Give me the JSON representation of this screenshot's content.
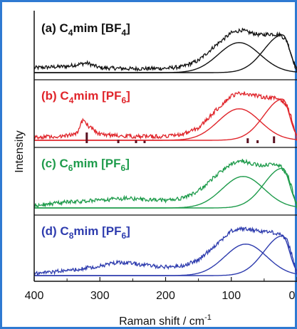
{
  "chart_data": {
    "type": "line",
    "xlabel": "Raman shift / cm",
    "xlabel_sup": "-1",
    "ylabel": "Intensity",
    "xlim": [
      400,
      0
    ],
    "x_ticks": [
      "400",
      "300",
      "200",
      "100",
      "0"
    ],
    "x_tick_values": [
      400,
      300,
      200,
      100,
      0
    ],
    "grid": false,
    "panels": [
      {
        "label_prefix": "(a) C",
        "label_sub1": "4",
        "label_mid": "mim [BF",
        "label_sub2": "4",
        "label_suffix": "]",
        "color": "#111111",
        "series": [
          {
            "kind": "spectrum",
            "x": [
              400,
              350,
              320,
              300,
              250,
              200,
              175,
              150,
              125,
              100,
              85,
              70,
              55,
              40,
              25,
              15,
              8
            ],
            "y": [
              0.1,
              0.13,
              0.2,
              0.1,
              0.08,
              0.09,
              0.12,
              0.25,
              0.55,
              0.82,
              0.88,
              0.82,
              0.78,
              0.8,
              0.78,
              0.65,
              0.35
            ]
          },
          {
            "kind": "band",
            "center": 88,
            "width": 45,
            "height": 0.62
          },
          {
            "kind": "band_asym",
            "center": 22,
            "width_left": 40,
            "width_right": 15,
            "height": 0.78
          }
        ]
      },
      {
        "label_prefix": "(b) C",
        "label_sub1": "4",
        "label_mid": "mim [PF",
        "label_sub2": "6",
        "label_suffix": "]",
        "color": "#e0252b",
        "series": [
          {
            "kind": "spectrum",
            "x": [
              400,
              350,
              335,
              325,
              318,
              300,
              250,
              200,
              175,
              150,
              125,
              100,
              85,
              70,
              55,
              40,
              25,
              15,
              8
            ],
            "y": [
              0.05,
              0.1,
              0.15,
              0.45,
              0.3,
              0.12,
              0.08,
              0.08,
              0.12,
              0.25,
              0.6,
              0.92,
              0.98,
              0.95,
              0.9,
              0.88,
              0.85,
              0.7,
              0.45
            ]
          },
          {
            "kind": "band",
            "center": 88,
            "width": 45,
            "height": 0.65
          },
          {
            "kind": "band_asym",
            "center": 22,
            "width_left": 40,
            "width_right": 15,
            "height": 0.85
          }
        ],
        "sticks": [
          {
            "x": 320,
            "h": 0.22
          },
          {
            "x": 272,
            "h": 0.07
          },
          {
            "x": 245,
            "h": 0.06
          },
          {
            "x": 232,
            "h": 0.05
          },
          {
            "x": 75,
            "h": 0.1
          },
          {
            "x": 60,
            "h": 0.06
          },
          {
            "x": 35,
            "h": 0.14
          }
        ]
      },
      {
        "label_prefix": "(c) C",
        "label_sub1": "6",
        "label_mid": "mim [PF",
        "label_sub2": "6",
        "label_suffix": "]",
        "color": "#1e9b4b",
        "series": [
          {
            "kind": "spectrum",
            "x": [
              400,
              350,
              300,
              260,
              240,
              200,
              175,
              150,
              125,
              100,
              85,
              70,
              55,
              40,
              25,
              15,
              8
            ],
            "y": [
              0.05,
              0.12,
              0.16,
              0.2,
              0.18,
              0.16,
              0.2,
              0.35,
              0.65,
              0.92,
              0.98,
              0.92,
              0.88,
              0.9,
              0.86,
              0.7,
              0.42
            ]
          },
          {
            "kind": "band",
            "center": 82,
            "width": 45,
            "height": 0.65
          },
          {
            "kind": "band_asym",
            "center": 22,
            "width_left": 40,
            "width_right": 15,
            "height": 0.82
          }
        ]
      },
      {
        "label_prefix": "(d) C",
        "label_sub1": "8",
        "label_mid": "mim [PF",
        "label_sub2": "6",
        "label_suffix": "]",
        "color": "#2e3cae",
        "series": [
          {
            "kind": "spectrum",
            "x": [
              400,
              350,
              300,
              270,
              250,
              220,
              200,
              175,
              150,
              125,
              100,
              85,
              70,
              55,
              40,
              25,
              15,
              8
            ],
            "y": [
              0.05,
              0.1,
              0.2,
              0.28,
              0.25,
              0.2,
              0.18,
              0.2,
              0.32,
              0.62,
              0.92,
              0.97,
              0.95,
              0.92,
              0.9,
              0.86,
              0.72,
              0.45
            ]
          },
          {
            "kind": "band",
            "center": 78,
            "width": 45,
            "height": 0.65
          },
          {
            "kind": "band_asym",
            "center": 22,
            "width_left": 40,
            "width_right": 15,
            "height": 0.82
          }
        ]
      }
    ]
  }
}
